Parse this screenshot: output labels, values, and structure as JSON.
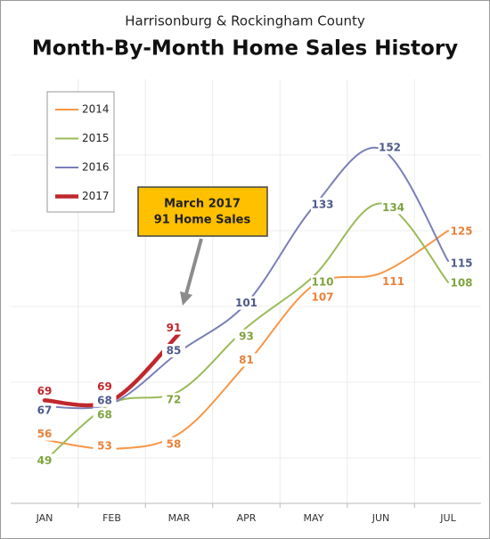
{
  "chart_data": {
    "type": "line",
    "subtitle": "Harrisonburg & Rockingham County",
    "title": "Month-By-Month Home Sales History",
    "categories": [
      "JAN",
      "FEB",
      "MAR",
      "APR",
      "MAY",
      "JUN",
      "JUL"
    ],
    "series": [
      {
        "name": "2014",
        "color": "#f79646",
        "label_color": "#e8823a",
        "values": [
          56,
          53,
          58,
          81,
          107,
          111,
          125
        ]
      },
      {
        "name": "2015",
        "color": "#9bbb59",
        "label_color": "#7fa33e",
        "values": [
          49,
          68,
          72,
          93,
          110,
          134,
          108
        ]
      },
      {
        "name": "2016",
        "color": "#7a7fb8",
        "label_color": "#4e5a8a",
        "values": [
          67,
          68,
          85,
          101,
          133,
          152,
          115
        ]
      },
      {
        "name": "2017",
        "color": "#c0282d",
        "label_color": "#c0282d",
        "values": [
          69,
          69,
          91,
          null,
          null,
          null,
          null
        ]
      }
    ],
    "ylim": [
      35,
      175
    ],
    "yticks": [
      50,
      75,
      100,
      125,
      150
    ],
    "ytick_labels": false,
    "grid": true,
    "legend": "upper left",
    "annotation": {
      "lines": [
        "March 2017",
        "91 Home Sales"
      ],
      "color": "#ffc000"
    }
  }
}
